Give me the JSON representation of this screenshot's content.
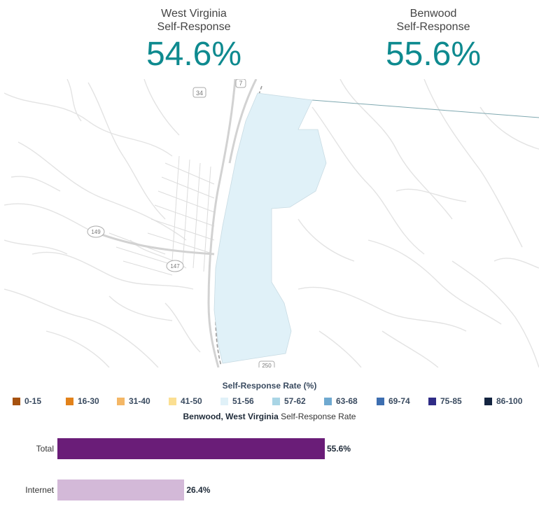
{
  "stats": {
    "state": {
      "name": "West Virginia",
      "label": "Self-Response",
      "value": "54.6%"
    },
    "place": {
      "name": "Benwood",
      "label": "Self-Response",
      "value": "55.6%"
    }
  },
  "map": {
    "route_shields": [
      "34",
      "7",
      "149",
      "147",
      "250"
    ],
    "highlight_fill": "#e0f1f8"
  },
  "legend": {
    "title": "Self-Response Rate (%)",
    "items": [
      {
        "label": "0-15",
        "color": "#a6520f"
      },
      {
        "label": "16-30",
        "color": "#e2821a"
      },
      {
        "label": "31-40",
        "color": "#f4b766"
      },
      {
        "label": "41-50",
        "color": "#fbdf92"
      },
      {
        "label": "51-56",
        "color": "#e0f1f8"
      },
      {
        "label": "57-62",
        "color": "#a9d5e5"
      },
      {
        "label": "63-68",
        "color": "#6fa9d0"
      },
      {
        "label": "69-74",
        "color": "#3d6eb0"
      },
      {
        "label": "75-85",
        "color": "#2f2c86"
      },
      {
        "label": "86-100",
        "color": "#132440"
      }
    ]
  },
  "bar_chart": {
    "title_bold": "Benwood, West Virginia",
    "title_rest": "Self-Response Rate",
    "rows": [
      {
        "label": "Total",
        "value": 55.6,
        "value_text": "55.6%",
        "color": "#6a1d78"
      },
      {
        "label": "Internet",
        "value": 26.4,
        "value_text": "26.4%",
        "color": "#d3b9d8"
      }
    ]
  }
}
